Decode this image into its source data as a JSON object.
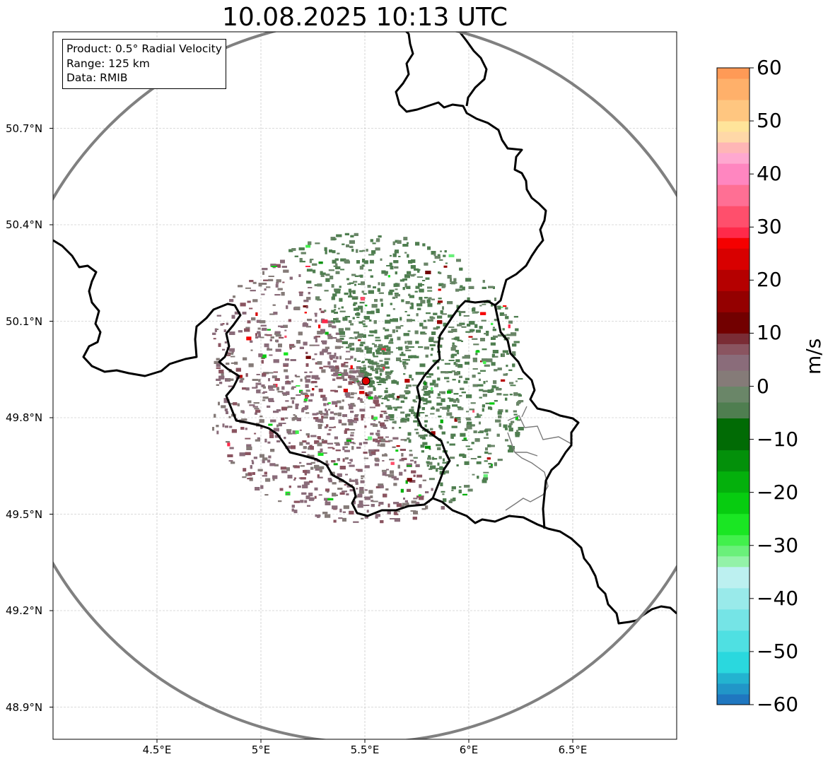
{
  "title": "10.08.2025 10:13 UTC",
  "info_box": {
    "product": "Product: 0.5° Radial Velocity",
    "range": "Range: 125 km",
    "data": "Data: RMIB"
  },
  "map": {
    "lon_range": [
      4.0,
      7.0
    ],
    "lat_range": [
      48.8,
      51.0
    ],
    "lat_ticks": [
      {
        "value": 50.7,
        "label": "50.7°N"
      },
      {
        "value": 50.4,
        "label": "50.4°N"
      },
      {
        "value": 50.1,
        "label": "50.1°N"
      },
      {
        "value": 49.8,
        "label": "49.8°N"
      },
      {
        "value": 49.5,
        "label": "49.5°N"
      },
      {
        "value": 49.2,
        "label": "49.2°N"
      },
      {
        "value": 48.9,
        "label": "48.9°N"
      }
    ],
    "lon_ticks": [
      {
        "value": 4.5,
        "label": "4.5°E"
      },
      {
        "value": 5.0,
        "label": "5°E"
      },
      {
        "value": 5.5,
        "label": "5.5°E"
      },
      {
        "value": 6.0,
        "label": "6°E"
      },
      {
        "value": 6.5,
        "label": "6.5°E"
      }
    ],
    "radar_site": {
      "lon": 5.505,
      "lat": 49.914
    },
    "range_km": 125,
    "grid": true,
    "range_ring_color": "#808080",
    "border_color": "#000000",
    "site_marker_color": "#e00000"
  },
  "colorbar": {
    "unit": "m/s",
    "range": [
      -60,
      60
    ],
    "ticks": [
      {
        "value": 60,
        "label": "60"
      },
      {
        "value": 50,
        "label": "50"
      },
      {
        "value": 40,
        "label": "40"
      },
      {
        "value": 30,
        "label": "30"
      },
      {
        "value": 20,
        "label": "20"
      },
      {
        "value": 10,
        "label": "10"
      },
      {
        "value": 0,
        "label": "0"
      },
      {
        "value": -10,
        "label": "−10"
      },
      {
        "value": -20,
        "label": "−20"
      },
      {
        "value": -30,
        "label": "−30"
      },
      {
        "value": -40,
        "label": "−40"
      },
      {
        "value": -50,
        "label": "−50"
      },
      {
        "value": -60,
        "label": "−60"
      }
    ],
    "stops": [
      {
        "from": -60,
        "to": -58,
        "color": "#1f77c0"
      },
      {
        "from": -58,
        "to": -56,
        "color": "#2196c8"
      },
      {
        "from": -56,
        "to": -54,
        "color": "#23b3d0"
      },
      {
        "from": -54,
        "to": -50,
        "color": "#2ad8de"
      },
      {
        "from": -50,
        "to": -46,
        "color": "#4fe0e2"
      },
      {
        "from": -46,
        "to": -42,
        "color": "#75e4e6"
      },
      {
        "from": -42,
        "to": -38,
        "color": "#99eaea"
      },
      {
        "from": -38,
        "to": -34,
        "color": "#bcf0f0"
      },
      {
        "from": -34,
        "to": -32,
        "color": "#93f2a8"
      },
      {
        "from": -32,
        "to": -30,
        "color": "#6af07a"
      },
      {
        "from": -30,
        "to": -28,
        "color": "#42f04c"
      },
      {
        "from": -28,
        "to": -24,
        "color": "#1ae623"
      },
      {
        "from": -24,
        "to": -20,
        "color": "#07cc10"
      },
      {
        "from": -20,
        "to": -16,
        "color": "#04b00c"
      },
      {
        "from": -16,
        "to": -12,
        "color": "#03900a"
      },
      {
        "from": -12,
        "to": -6,
        "color": "#016b05"
      },
      {
        "from": -6,
        "to": -3,
        "color": "#4f7e50"
      },
      {
        "from": -3,
        "to": 0,
        "color": "#6a8668"
      },
      {
        "from": 0,
        "to": 3,
        "color": "#857b78"
      },
      {
        "from": 3,
        "to": 6,
        "color": "#8a6c7a"
      },
      {
        "from": 6,
        "to": 8,
        "color": "#8a5460"
      },
      {
        "from": 8,
        "to": 10,
        "color": "#7a2c35"
      },
      {
        "from": 10,
        "to": 14,
        "color": "#720000"
      },
      {
        "from": 14,
        "to": 18,
        "color": "#940000"
      },
      {
        "from": 18,
        "to": 22,
        "color": "#b50000"
      },
      {
        "from": 22,
        "to": 26,
        "color": "#d80000"
      },
      {
        "from": 26,
        "to": 28,
        "color": "#f50000"
      },
      {
        "from": 28,
        "to": 30,
        "color": "#ff2a4a"
      },
      {
        "from": 30,
        "to": 34,
        "color": "#ff4f6c"
      },
      {
        "from": 34,
        "to": 38,
        "color": "#ff6f94"
      },
      {
        "from": 38,
        "to": 42,
        "color": "#ff86c0"
      },
      {
        "from": 42,
        "to": 44,
        "color": "#ffa8d0"
      },
      {
        "from": 44,
        "to": 46,
        "color": "#ffb6b6"
      },
      {
        "from": 46,
        "to": 48,
        "color": "#ffd8a8"
      },
      {
        "from": 48,
        "to": 50,
        "color": "#ffe49a"
      },
      {
        "from": 50,
        "to": 54,
        "color": "#ffc680"
      },
      {
        "from": 54,
        "to": 58,
        "color": "#ffb06a"
      },
      {
        "from": 58,
        "to": 60,
        "color": "#ff9a56"
      }
    ]
  }
}
